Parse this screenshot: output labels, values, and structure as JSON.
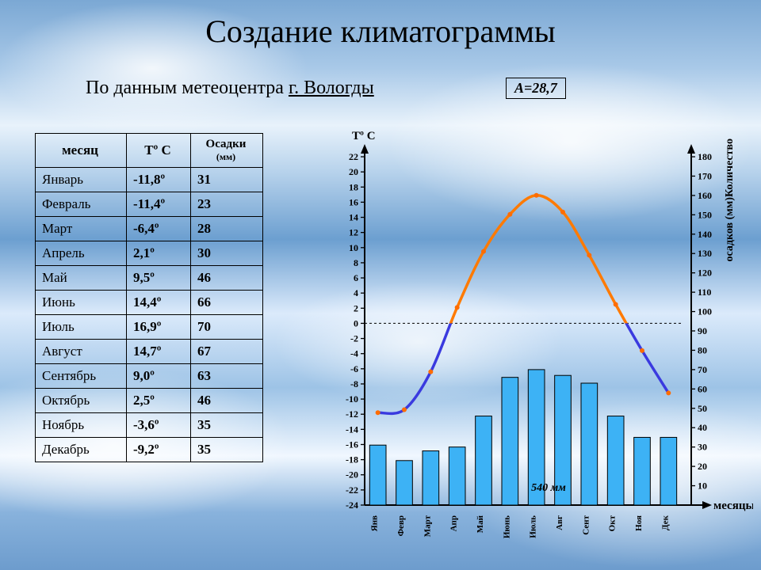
{
  "title": "Создание климатограммы",
  "subtitle_prefix": "По данным метеоцентра ",
  "subtitle_city": "г. Вологды",
  "amplitude_label": "A=28,7",
  "table": {
    "headers": {
      "month": "месяц",
      "temp": "Tº C",
      "precip": "Осадки",
      "precip_unit": "(мм)"
    },
    "rows": [
      {
        "month": "Январь",
        "temp": "-11,8º",
        "precip": "31"
      },
      {
        "month": "Февраль",
        "temp": "-11,4º",
        "precip": "23"
      },
      {
        "month": "Март",
        "temp": "-6,4º",
        "precip": "28"
      },
      {
        "month": "Апрель",
        "temp": "2,1º",
        "precip": "30"
      },
      {
        "month": "Май",
        "temp": "9,5º",
        "precip": "46"
      },
      {
        "month": "Июнь",
        "temp": "14,4º",
        "precip": "66"
      },
      {
        "month": "Июль",
        "temp": "16,9º",
        "precip": "70"
      },
      {
        "month": "Август",
        "temp": "14,7º",
        "precip": "67"
      },
      {
        "month": "Сентябрь",
        "temp": "9,0º",
        "precip": "63"
      },
      {
        "month": "Октябрь",
        "temp": "2,5º",
        "precip": "46"
      },
      {
        "month": "Ноябрь",
        "temp": "-3,6º",
        "precip": "35"
      },
      {
        "month": "Декабрь",
        "temp": "-9,2º",
        "precip": "35"
      }
    ]
  },
  "chart": {
    "type": "climatogram",
    "x_labels": [
      "Янв",
      "Февр",
      "Март",
      "Апр",
      "Май",
      "Июнь",
      "Июль",
      "Авг",
      "Сент",
      "Окт",
      "Ноя",
      "Дек"
    ],
    "temp_values": [
      -11.8,
      -11.4,
      -6.4,
      2.1,
      9.5,
      14.4,
      16.9,
      14.7,
      9.0,
      2.5,
      -3.6,
      -9.2
    ],
    "precip_values": [
      31,
      23,
      28,
      30,
      46,
      66,
      70,
      67,
      63,
      46,
      35,
      35
    ],
    "temp_axis": {
      "title": "Tº C",
      "min": -24,
      "max": 22,
      "ticks": [
        22,
        20,
        18,
        16,
        14,
        12,
        10,
        8,
        6,
        4,
        2,
        0,
        -2,
        -4,
        -6,
        -8,
        -10,
        -12,
        -14,
        -16,
        -18,
        -20,
        -22,
        -24
      ]
    },
    "precip_axis": {
      "title_line1": "Количество",
      "title_line2": "осадков (мм)",
      "min": 0,
      "max": 180,
      "ticks": [
        180,
        170,
        160,
        150,
        140,
        130,
        120,
        110,
        100,
        90,
        80,
        70,
        60,
        50,
        40,
        30,
        20,
        10
      ]
    },
    "x_axis_title": "месяцы",
    "annual_precip_label": "540 мм",
    "colors": {
      "bar_fill": "#3db2f5",
      "bar_stroke": "#000000",
      "temp_warm": "#ff7a00",
      "temp_cold": "#3a3adf",
      "dot": "#ff6c00",
      "axis": "#000000",
      "zero_line": "#000000",
      "background": "transparent"
    },
    "line_width": 3.5,
    "dot_radius": 3,
    "bar_width_ratio": 0.62
  }
}
